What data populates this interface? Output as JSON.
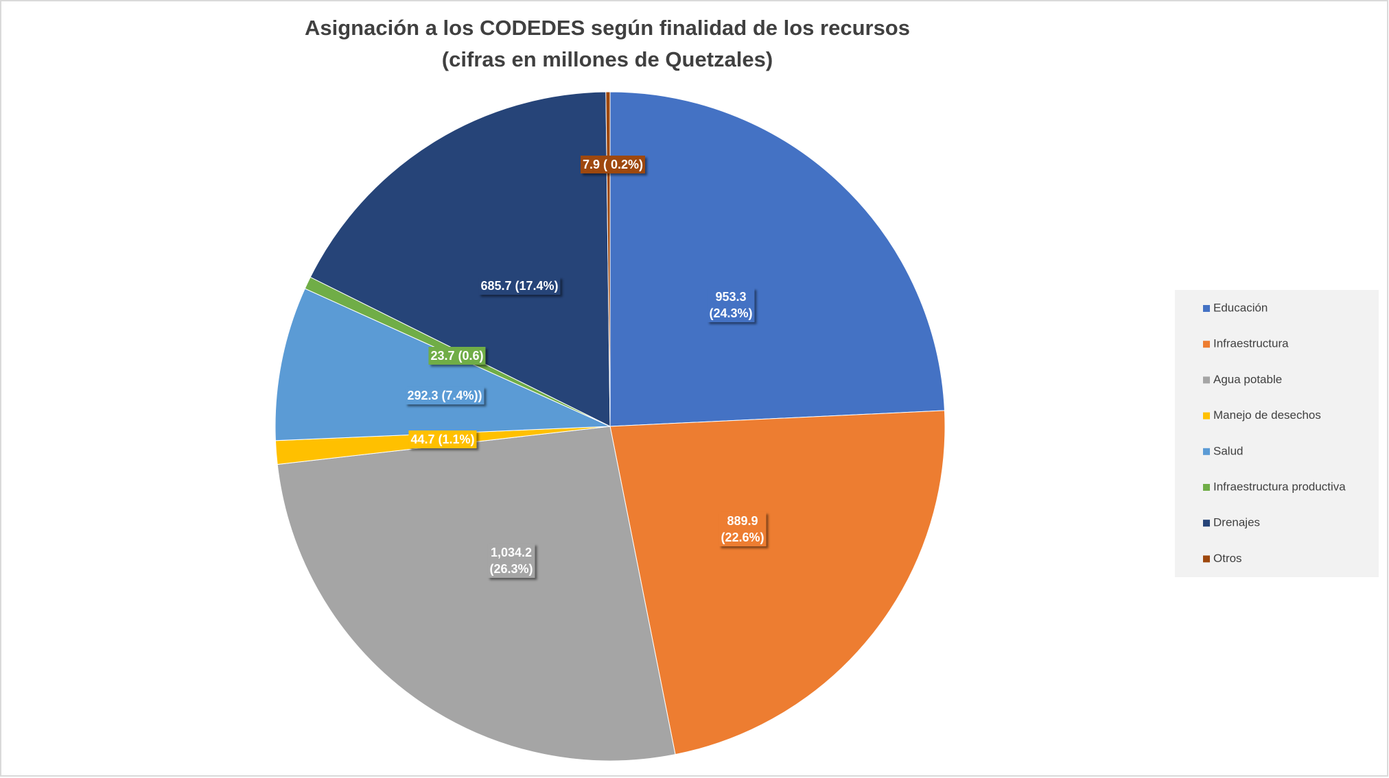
{
  "chart_data": {
    "type": "pie",
    "title": "Asignación a los CODEDES según finalidad de los recursos",
    "subtitle": "(cifras en millones de Quetzales)",
    "categories": [
      "Educación",
      "Infraestructura",
      "Agua potable",
      "Manejo de desechos",
      "Salud",
      "Infraestructura productiva",
      "Drenajes",
      "Otros"
    ],
    "values": [
      953.3,
      889.9,
      1034.2,
      44.7,
      292.3,
      23.7,
      685.7,
      7.9
    ],
    "value_labels": [
      "953.3\n(24.3%)",
      "889.9\n(22.6%)",
      "1,034.2\n(26.3%)",
      "44.7 (1.1%)",
      "292.3 (7.4%))",
      "23.7 (0.6)",
      "685.7 (17.4%)",
      "7.9 ( 0.2%)"
    ],
    "colors": [
      "#4472c4",
      "#ed7d31",
      "#a5a5a5",
      "#ffc000",
      "#5b9bd5",
      "#70ad47",
      "#264478",
      "#9e480e"
    ],
    "legend": "right"
  }
}
